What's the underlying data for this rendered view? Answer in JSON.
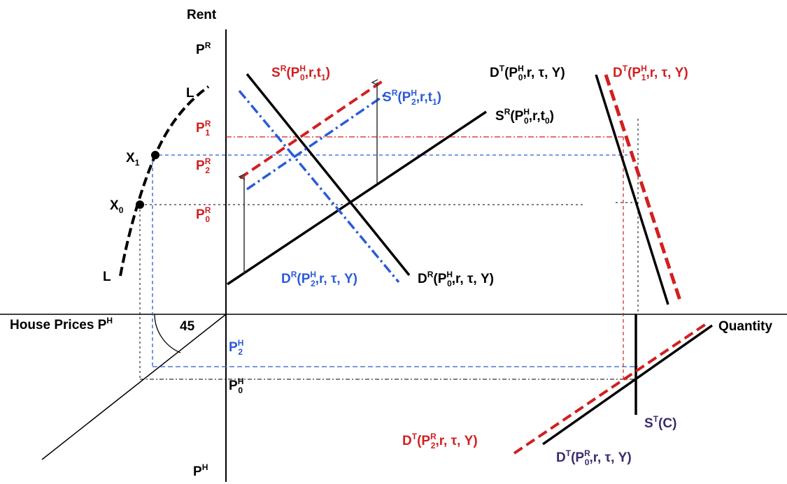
{
  "colors": {
    "black": "#000000",
    "red": "#d21f1f",
    "blue": "#2a5bd8",
    "purple": "#3c2a6e"
  },
  "labels": {
    "rent": "Rent",
    "quantity": "Quantity",
    "house_prices": "House Prices P",
    "house_prices_sup": "H",
    "angle": "45",
    "curve_top": "L",
    "curve_bottom": "L",
    "x1": "X",
    "x1_sub": "1",
    "x0": "X",
    "x0_sub": "0",
    "pr_top": {
      "base": "P",
      "sup": "R"
    },
    "pr1": {
      "base": "P",
      "sup": "R",
      "sub": "1"
    },
    "pr2": {
      "base": "P",
      "sup": "R",
      "sub": "2"
    },
    "pr0": {
      "base": "P",
      "sup": "R",
      "sub": "0"
    },
    "ph2": {
      "base": "P",
      "sup": "H",
      "sub": "2"
    },
    "ph0": {
      "base": "P",
      "sup": "H",
      "sub": "0"
    },
    "ph_bottom": {
      "base": "P",
      "sup": "H"
    },
    "sr_ph0_t1": {
      "pre": "S",
      "sup1": "R",
      "mid": "(P",
      "sup2": "H",
      "sub": "0",
      "post": ",r,t",
      "sub2": "1",
      "end": ")"
    },
    "sr_ph2_t1": {
      "pre": "S",
      "sup1": "R",
      "mid": "(P",
      "sup2": "H",
      "sub": "2",
      "post": ",r,t",
      "sub2": "1",
      "end": ")"
    },
    "sr_ph0_t0": {
      "pre": "S",
      "sup1": "R",
      "mid": "(P",
      "sup2": "H",
      "sub": "0",
      "post": ",r,t",
      "sub2": "0",
      "end": ")"
    },
    "dr_ph2": {
      "pre": "D",
      "sup1": "R",
      "mid": "(P",
      "sup2": "H",
      "sub": "2",
      "post": ",r, τ, Y)"
    },
    "dr_ph0": {
      "pre": "D",
      "sup1": "R",
      "mid": "(P",
      "sup2": "H",
      "sub": "0",
      "post": ",r, τ, Y)"
    },
    "dt_ph0": {
      "pre": "D",
      "sup1": "T",
      "mid": "(P",
      "sup2": "H",
      "sub": "0",
      "post": ",r, τ, Y)"
    },
    "dt_ph1": {
      "pre": "D",
      "sup1": "T",
      "mid": "(P",
      "sup2": "H",
      "sub": "1",
      "post": ",r, τ, Y)"
    },
    "dt_pr2": {
      "pre": "D",
      "sup1": "T",
      "mid": "(P",
      "sup2": "R",
      "sub": "2",
      "post": ",r, τ, Y)"
    },
    "dt_pr0": {
      "pre": "D",
      "sup1": "T",
      "mid": "(P",
      "sup2": "R",
      "sub": "0",
      "post": ",r, τ, Y)"
    },
    "st_c": {
      "pre": "S",
      "sup1": "T",
      "post": "(C)"
    }
  }
}
